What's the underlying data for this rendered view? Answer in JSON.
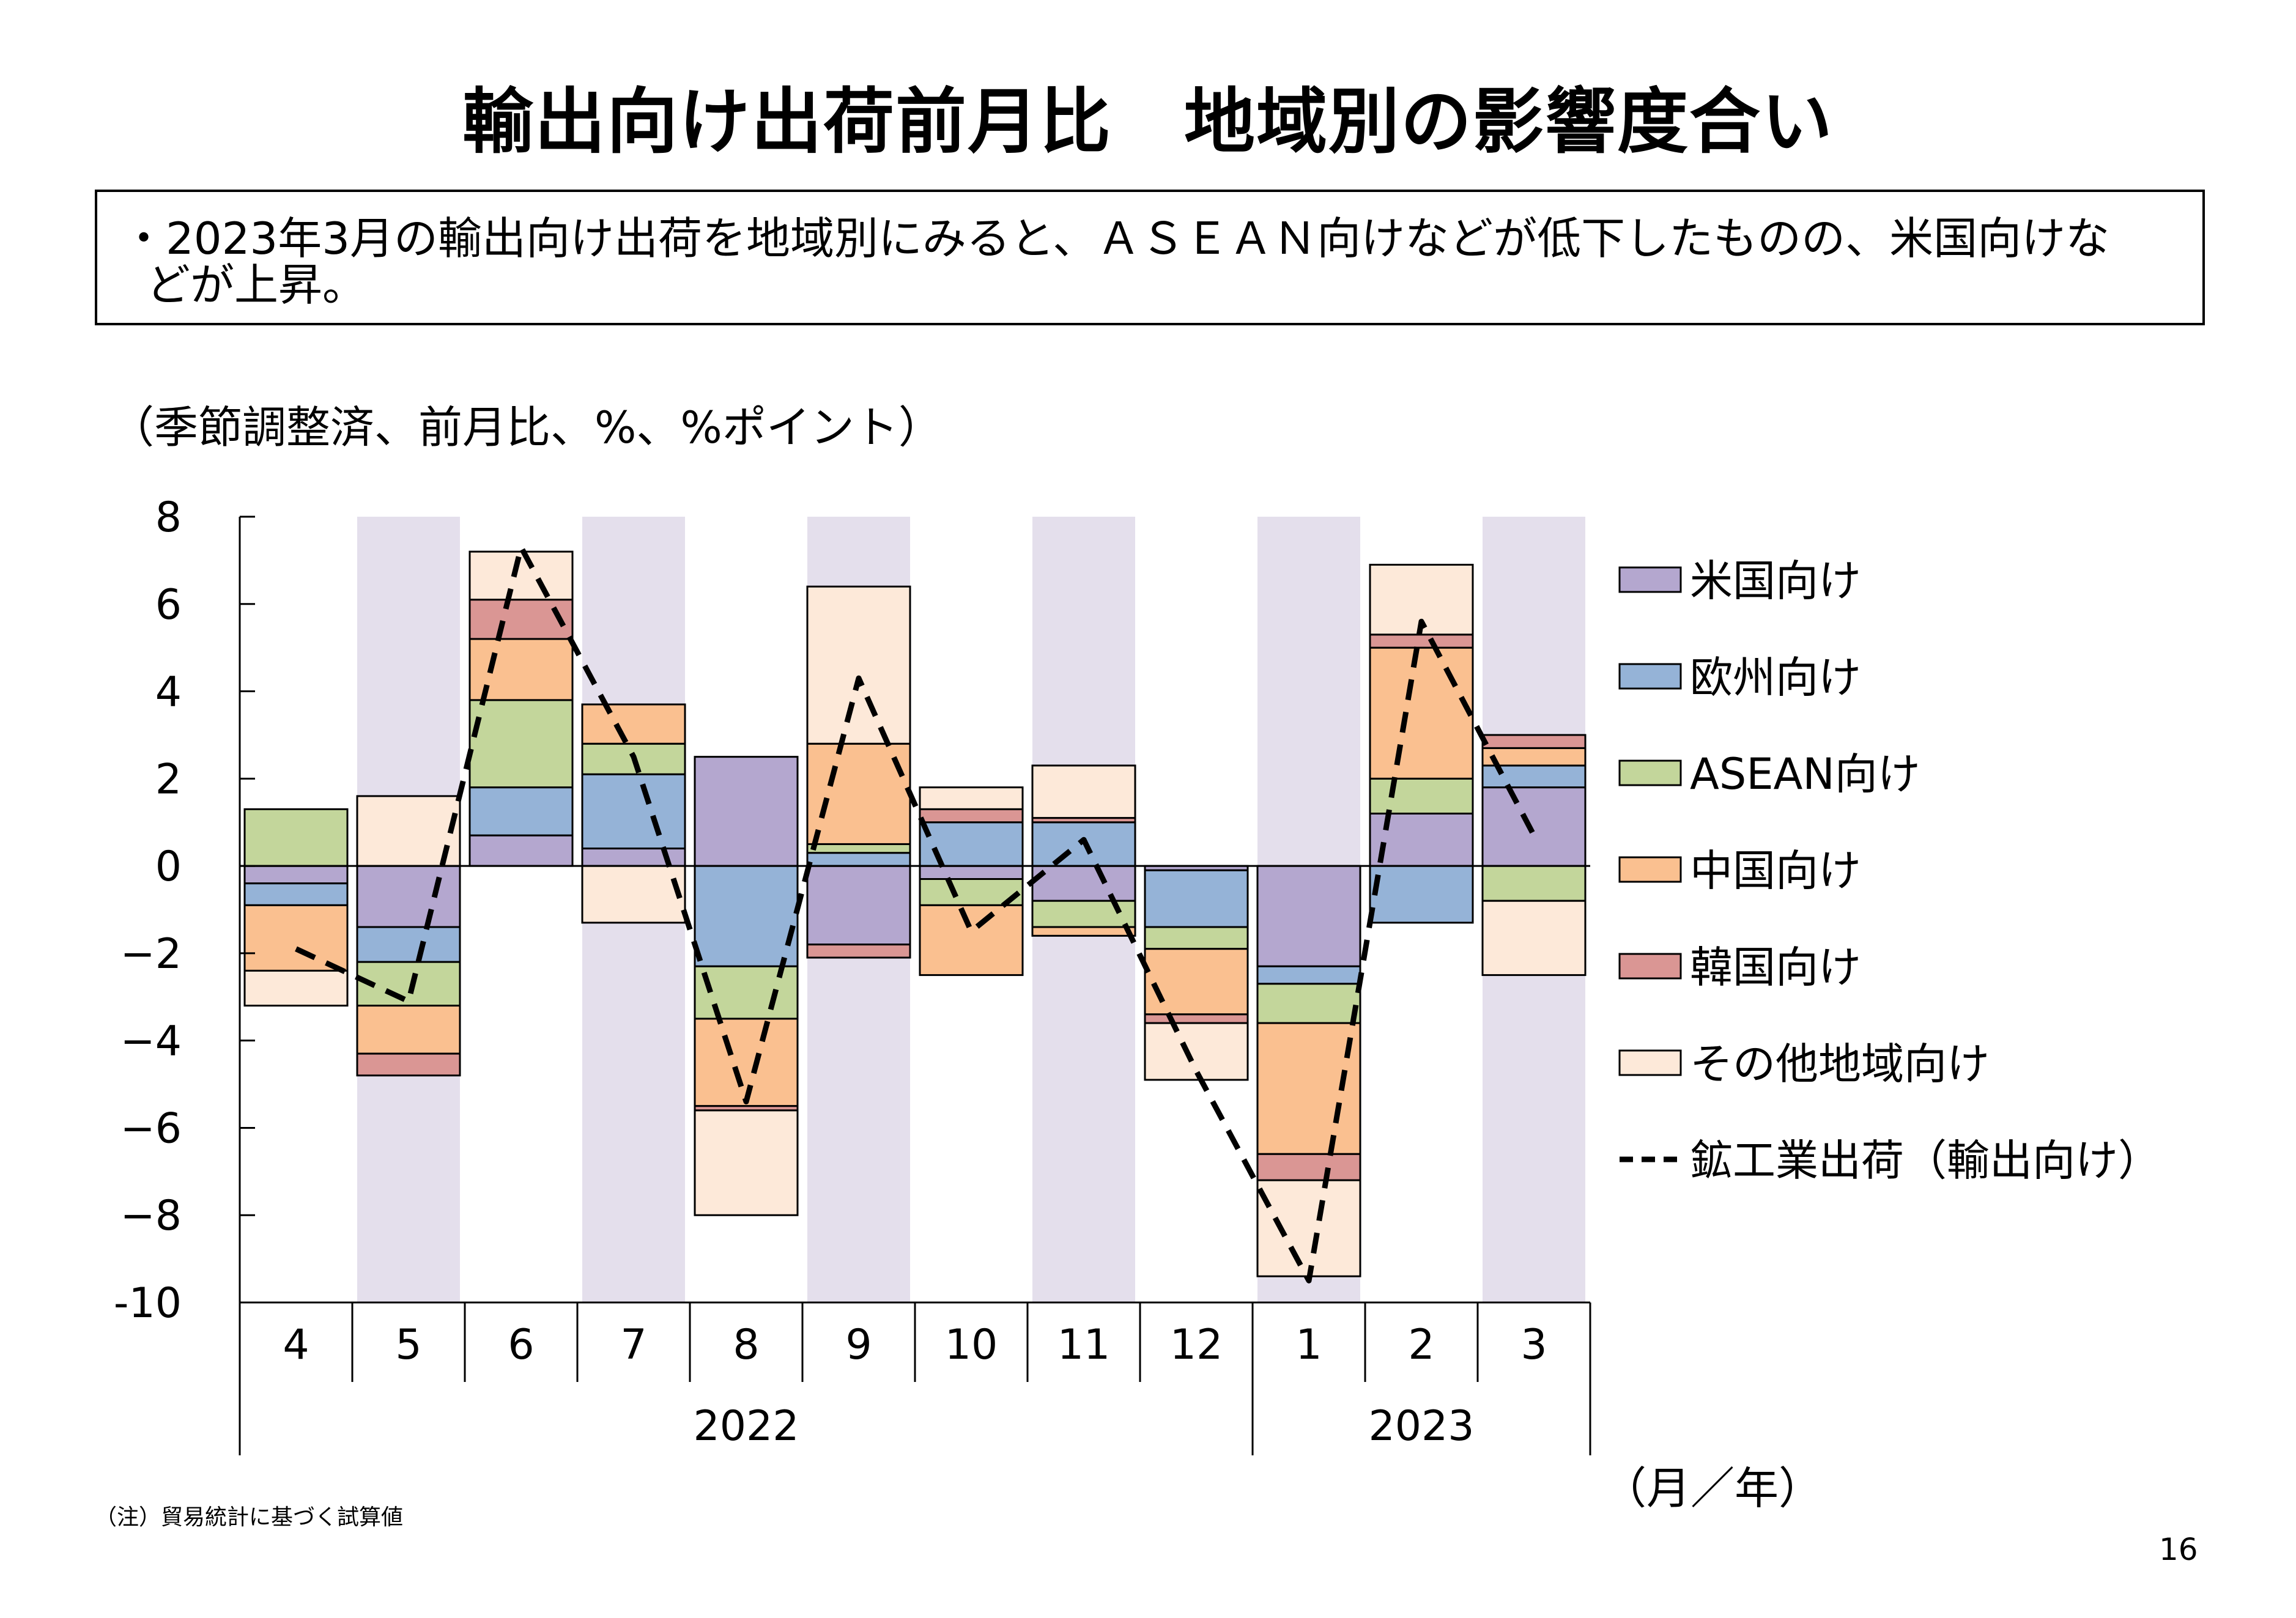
{
  "title": "輸出向け出荷前月比　地域別の影響度合い",
  "summary": {
    "line1": "・2023年3月の輸出向け出荷を地域別にみると、ＡＳＥＡＮ向けなどが低下したものの、米国向けな",
    "line2": "どが上昇。"
  },
  "unit_label": "（季節調整済、前月比、%、%ポイント）",
  "x_unit_label": "（月／年）",
  "footnote": "（注）貿易統計に基づく試算値",
  "page_number": "16",
  "chart_data": {
    "type": "bar",
    "stacked": true,
    "categories": [
      "4",
      "5",
      "6",
      "7",
      "8",
      "9",
      "10",
      "11",
      "12",
      "1",
      "2",
      "3"
    ],
    "years": [
      {
        "label": "2022",
        "categories": [
          "4",
          "5",
          "6",
          "7",
          "8",
          "9",
          "10",
          "11",
          "12"
        ]
      },
      {
        "label": "2023",
        "categories": [
          "1",
          "2",
          "3"
        ]
      }
    ],
    "yticks": [
      "8",
      "6",
      "4",
      "2",
      "0",
      "−2",
      "−4",
      "−6",
      "−8",
      "-10"
    ],
    "ylim": [
      -10,
      8
    ],
    "shaded_months": [
      "5",
      "7",
      "9",
      "11",
      "1",
      "3"
    ],
    "series": [
      {
        "name": "米国向け",
        "color": "#b4a7cf",
        "values": [
          -0.4,
          -1.4,
          0.7,
          0.4,
          2.5,
          -1.8,
          -0.3,
          -0.8,
          -0.1,
          -2.3,
          1.2,
          1.8
        ]
      },
      {
        "name": "欧州向け",
        "color": "#95b3d7",
        "values": [
          -0.5,
          -0.8,
          1.1,
          1.7,
          -2.3,
          0.3,
          1.0,
          1.0,
          -1.3,
          -0.4,
          -1.3,
          0.5
        ]
      },
      {
        "name": "ASEAN向け",
        "color": "#c3d69b",
        "values": [
          1.3,
          -1.0,
          2.0,
          0.7,
          -1.2,
          0.2,
          -0.6,
          -0.6,
          -0.5,
          -0.9,
          0.8,
          -0.8
        ]
      },
      {
        "name": "中国向け",
        "color": "#fac090",
        "values": [
          -1.5,
          -1.1,
          1.4,
          0.9,
          -2.0,
          2.3,
          -1.6,
          -0.2,
          -1.5,
          -3.0,
          3.0,
          0.4
        ]
      },
      {
        "name": "韓国向け",
        "color": "#da9694",
        "values": [
          0.0,
          -0.5,
          0.9,
          0.0,
          -0.1,
          -0.3,
          0.3,
          0.1,
          -0.2,
          -0.6,
          0.3,
          0.3
        ]
      },
      {
        "name": "その他地域向け",
        "color": "#fde9d9",
        "values": [
          -0.8,
          1.6,
          1.1,
          -1.3,
          -2.4,
          3.6,
          0.5,
          1.2,
          -1.3,
          -2.2,
          1.6,
          -1.7
        ]
      }
    ],
    "line_series": {
      "name": "鉱工業出荷（輸出向け）",
      "color": "#000000",
      "style": "dashed",
      "values": [
        -1.9,
        -3.1,
        7.3,
        2.5,
        -5.4,
        4.3,
        -1.5,
        0.6,
        -4.7,
        -9.5,
        5.6,
        0.7
      ]
    },
    "legend_position": "right"
  }
}
